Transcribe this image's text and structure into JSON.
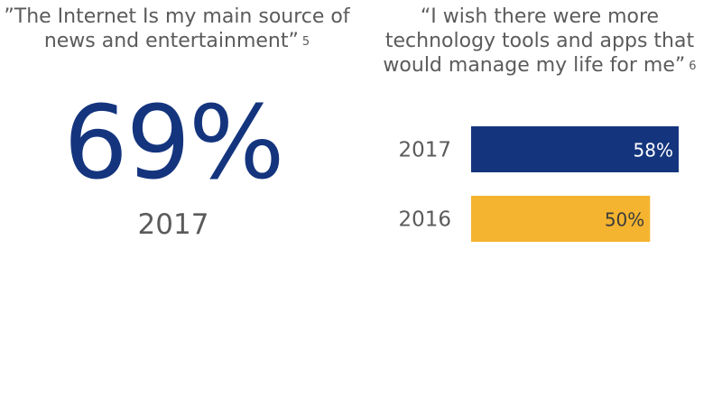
{
  "left_panel": {
    "quote": "”The Internet Is my main source of news and entertainment”",
    "footnote": "5",
    "stat": "69%",
    "stat_year": "2017",
    "stat_color": "#14357e"
  },
  "right_panel": {
    "quote": "“I wish there were more technology tools and apps that would manage my life for me”",
    "footnote": "6"
  },
  "chart_data": {
    "type": "bar",
    "orientation": "horizontal",
    "categories": [
      "2017",
      "2016"
    ],
    "values": [
      58,
      50
    ],
    "value_labels": [
      "58%",
      "50%"
    ],
    "colors": [
      "#14357e",
      "#f4b42f"
    ],
    "label_colors": [
      "#ffffff",
      "#3c3c3c"
    ],
    "xlim": [
      0,
      100
    ],
    "grid": false,
    "title": "",
    "xlabel": "",
    "ylabel": ""
  }
}
